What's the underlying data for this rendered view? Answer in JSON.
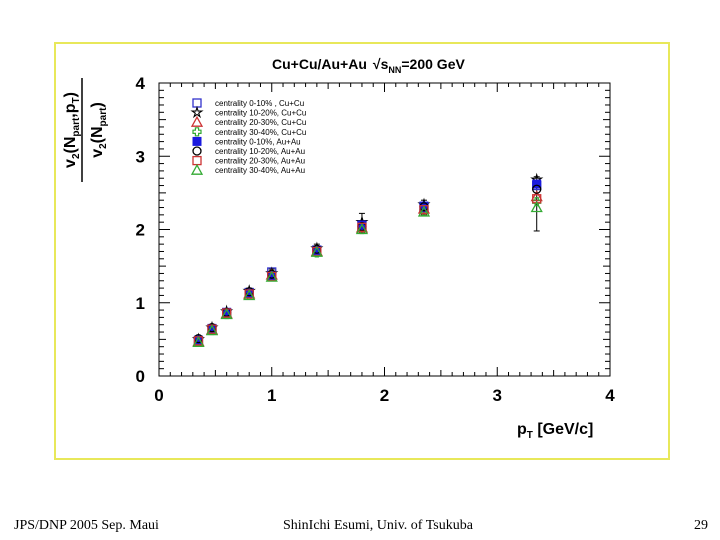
{
  "footer": {
    "left": "JPS/DNP 2005 Sep. Maui",
    "center": "ShinIchi Esumi, Univ. of Tsukuba",
    "page": "29"
  },
  "chart_data": {
    "type": "scatter",
    "title": "Cu+Cu/Au+Au",
    "title_suffix": "=200 GeV",
    "title_sqrt_symbol": "√",
    "title_s": "s",
    "title_sub": "NN",
    "ylabel_num": {
      "v": "v",
      "sub2": "2",
      "lp": "(N",
      "part": "part",
      "mid": ",p",
      "T": "T",
      "rp": ")"
    },
    "ylabel_den": {
      "v": "v",
      "sub2": "2",
      "lp": "(N",
      "part": "part",
      "rp": ")"
    },
    "xlabel": {
      "p": "p",
      "T": "T",
      "unit": " [GeV/c]"
    },
    "xlim": [
      0,
      4
    ],
    "ylim": [
      0,
      4
    ],
    "xticks": [
      "0",
      "1",
      "2",
      "3",
      "4"
    ],
    "yticks": [
      "0",
      "1",
      "2",
      "3",
      "4"
    ],
    "grid": false,
    "legend_position": "top-left",
    "x": [
      0.35,
      0.47,
      0.6,
      0.8,
      1.0,
      1.4,
      1.8,
      2.35,
      3.35
    ],
    "series": [
      {
        "name": "centrality 0-10% , Cu+Cu",
        "marker": "square-open",
        "color": "#3333cc",
        "values": [
          0.48,
          0.64,
          0.86,
          1.14,
          1.42,
          1.72,
          2.05,
          2.3,
          2.6
        ]
      },
      {
        "name": "centrality 10-20%, Cu+Cu",
        "marker": "star-open",
        "color": "#000000",
        "values": [
          0.5,
          0.66,
          0.88,
          1.16,
          1.4,
          1.74,
          2.1,
          2.34,
          2.68
        ]
      },
      {
        "name": "centrality 20-30%, Cu+Cu",
        "marker": "triangle-open",
        "color": "#cc3333",
        "values": [
          0.47,
          0.63,
          0.85,
          1.12,
          1.38,
          1.7,
          2.02,
          2.28,
          2.45
        ]
      },
      {
        "name": "centrality 30-40%, Cu+Cu",
        "marker": "cross-open",
        "color": "#33aa33",
        "values": [
          0.46,
          0.62,
          0.84,
          1.1,
          1.36,
          1.68,
          2.0,
          2.25,
          2.38
        ]
      },
      {
        "name": "centrality 0-10%, Au+Au",
        "marker": "square-filled",
        "color": "#1a1adf",
        "values": [
          0.49,
          0.65,
          0.87,
          1.13,
          1.37,
          1.71,
          2.06,
          2.32,
          2.62
        ]
      },
      {
        "name": "centrality 10-20%, Au+Au",
        "marker": "circle-open",
        "color": "#000000",
        "values": [
          0.51,
          0.66,
          0.87,
          1.15,
          1.39,
          1.73,
          2.04,
          2.31,
          2.55
        ]
      },
      {
        "name": "centrality 20-30%, Au+Au",
        "marker": "square-open",
        "color": "#cc3333",
        "values": [
          0.48,
          0.64,
          0.86,
          1.12,
          1.36,
          1.7,
          2.03,
          2.27,
          2.42
        ]
      },
      {
        "name": "centrality 30-40%, Au+Au",
        "marker": "triangle-open",
        "color": "#33aa33",
        "values": [
          0.46,
          0.62,
          0.84,
          1.1,
          1.35,
          1.69,
          2.0,
          2.24,
          2.3
        ]
      }
    ],
    "error_bars": {
      "x": [
        0.35,
        0.47,
        0.6,
        0.8,
        1.0,
        1.4,
        1.8,
        2.35,
        3.35
      ],
      "low": [
        0.44,
        0.6,
        0.82,
        1.08,
        1.32,
        1.64,
        1.96,
        2.2,
        1.98
      ],
      "high": [
        0.54,
        0.7,
        0.91,
        1.2,
        1.46,
        1.8,
        2.22,
        2.4,
        2.72
      ]
    }
  }
}
